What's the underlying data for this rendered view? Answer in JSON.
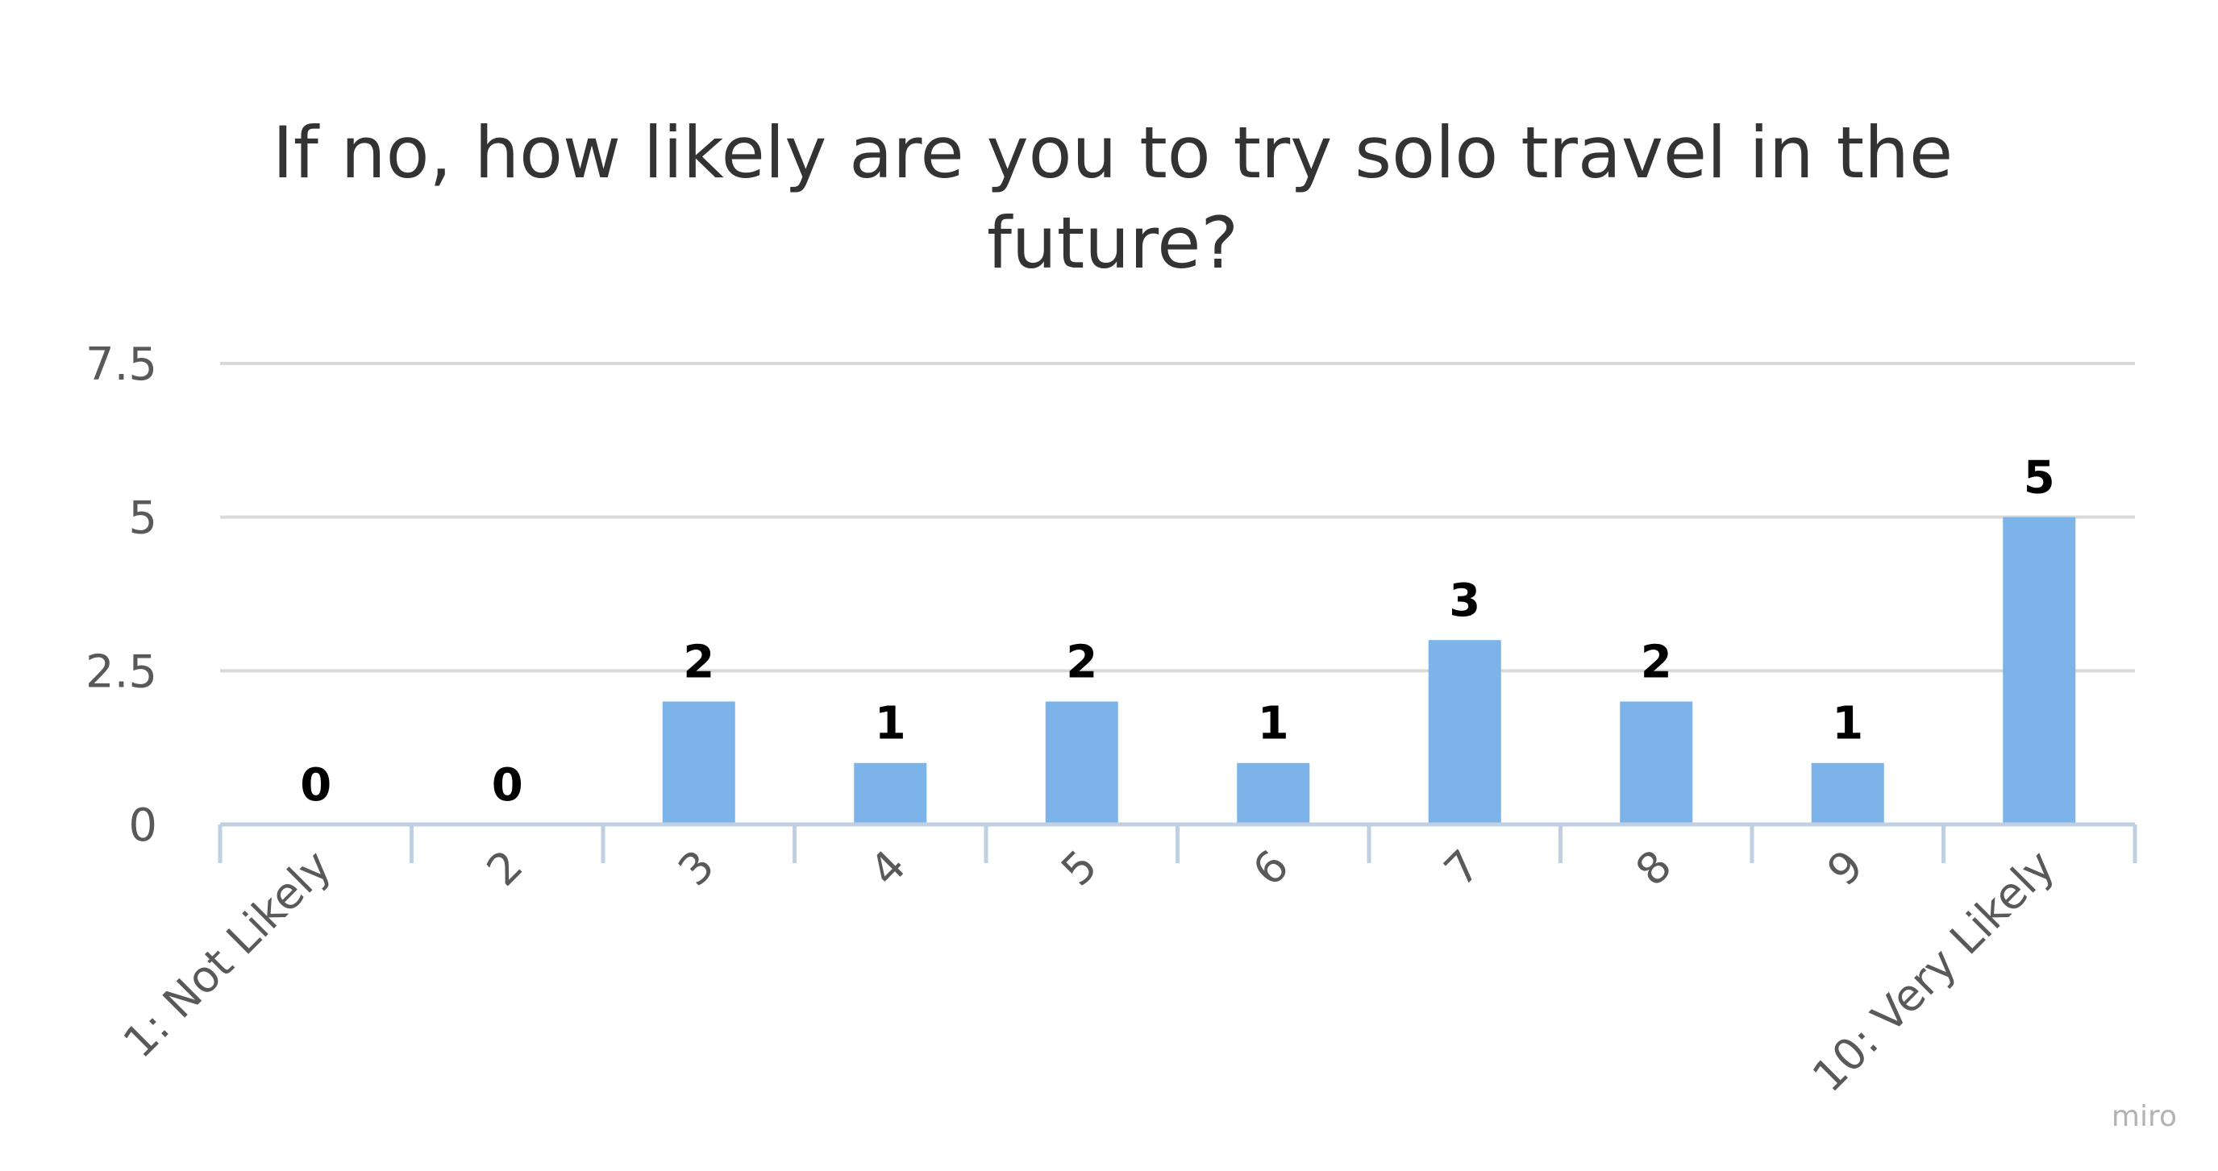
{
  "chart_data": {
    "type": "bar",
    "title": "If no, how likely are you to try solo travel in the future?",
    "title_lines": [
      "If no, how likely are you to try solo travel in the",
      "future?"
    ],
    "categories": [
      "1: Not Likely",
      "2",
      "3",
      "4",
      "5",
      "6",
      "7",
      "8",
      "9",
      "10: Very Likely"
    ],
    "values": [
      0,
      0,
      2,
      1,
      2,
      1,
      3,
      2,
      1,
      5
    ],
    "yticks": [
      "0",
      "2.5",
      "5",
      "7.5"
    ],
    "ytick_values": [
      0,
      2.5,
      5,
      7.5
    ],
    "ylim": [
      0,
      7.5
    ],
    "grid": true,
    "legend": "none",
    "bar_color": "#7cb4ea",
    "grid_color": "#d9d9d9",
    "axis_color": "#bfd0e2"
  },
  "watermark": "miro"
}
